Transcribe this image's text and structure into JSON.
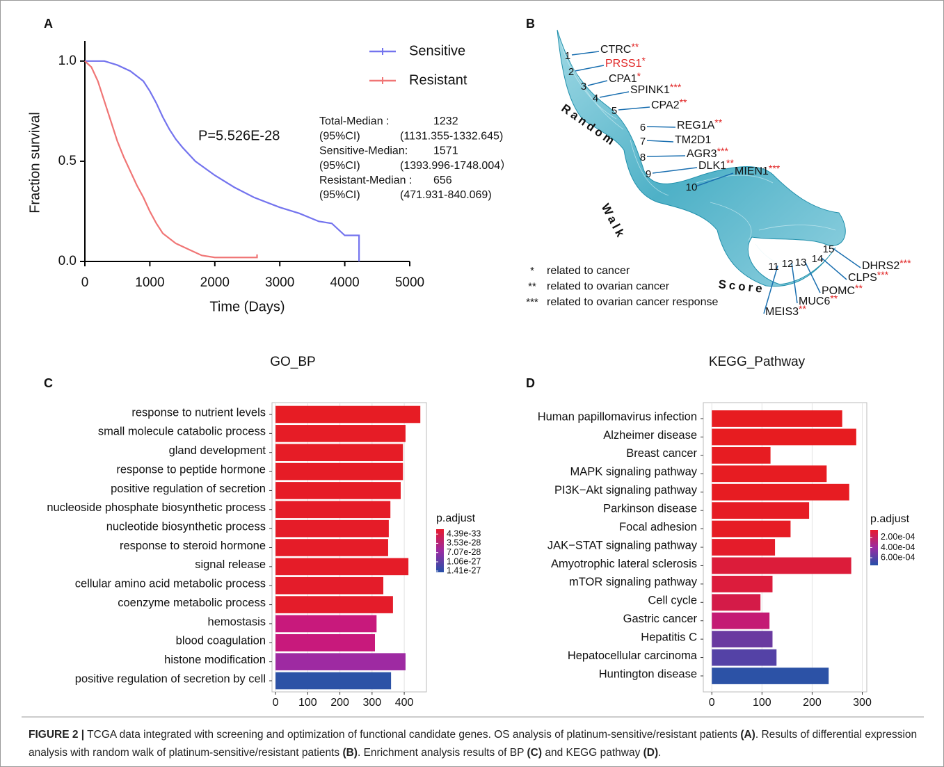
{
  "chart_data": [
    {
      "type": "survival",
      "panel": "A",
      "xlabel": "Time (Days)",
      "ylabel": "Fraction survival",
      "xlim": [
        0,
        5000
      ],
      "ylim": [
        0,
        1.1
      ],
      "xticks": [
        0,
        1000,
        2000,
        3000,
        4000,
        5000
      ],
      "yticks": [
        {
          "value": 0,
          "label": "0.0"
        },
        {
          "value": 0.5,
          "label": "0.5"
        },
        {
          "value": 1,
          "label": "1.0"
        }
      ],
      "legend": "upper right",
      "series": [
        {
          "name": "Sensitive",
          "color": "#7373ee",
          "x": [
            0,
            300,
            500,
            700,
            900,
            1000,
            1100,
            1200,
            1300,
            1400,
            1500,
            1700,
            2000,
            2300,
            2600,
            3000,
            3300,
            3600,
            3800,
            4000,
            4220,
            4220
          ],
          "values": [
            1.0,
            1.0,
            0.98,
            0.95,
            0.9,
            0.85,
            0.79,
            0.72,
            0.66,
            0.61,
            0.57,
            0.5,
            0.43,
            0.37,
            0.32,
            0.27,
            0.24,
            0.2,
            0.19,
            0.13,
            0.13,
            0.0
          ]
        },
        {
          "name": "Resistant",
          "color": "#f07575",
          "x": [
            0,
            100,
            200,
            300,
            400,
            500,
            600,
            700,
            800,
            900,
            1000,
            1100,
            1200,
            1400,
            1600,
            1800,
            2000,
            2650,
            2650
          ],
          "values": [
            1.0,
            0.97,
            0.9,
            0.8,
            0.7,
            0.6,
            0.52,
            0.45,
            0.38,
            0.32,
            0.25,
            0.19,
            0.14,
            0.09,
            0.06,
            0.03,
            0.02,
            0.02,
            0.035
          ]
        }
      ],
      "annotation": "P=5.526E-28",
      "stats": [
        [
          "Total-Median :",
          "1232"
        ],
        [
          "(95%CI)",
          "(1131.355-1332.645)"
        ],
        [
          "Sensitive-Median:",
          "1571"
        ],
        [
          "(95%CI)",
          "(1393.996-1748.004）"
        ],
        [
          "Resistant-Median :",
          "656"
        ],
        [
          "(95%CI)",
          "(471.931-840.069)"
        ]
      ]
    },
    {
      "type": "ribbon",
      "panel": "B",
      "axis_words": [
        "Random",
        "Walk",
        "Score"
      ],
      "genes": [
        {
          "rank": 1,
          "name": "CTRC",
          "stars": "**"
        },
        {
          "rank": 2,
          "name": "PRSS1",
          "stars": "*",
          "color": "#e02020"
        },
        {
          "rank": 3,
          "name": "CPA1",
          "stars": "*"
        },
        {
          "rank": 4,
          "name": "SPINK1",
          "stars": "***"
        },
        {
          "rank": 5,
          "name": "CPA2",
          "stars": "**"
        },
        {
          "rank": 6,
          "name": "REG1A",
          "stars": "**"
        },
        {
          "rank": 7,
          "name": "TM2D1"
        },
        {
          "rank": 8,
          "name": "AGR3",
          "stars": "***"
        },
        {
          "rank": 9,
          "name": "DLK1",
          "stars": "**"
        },
        {
          "rank": 10,
          "name": "MIEN1",
          "stars": "***"
        },
        {
          "rank": 11,
          "name": "MEIS3",
          "stars": "**"
        },
        {
          "rank": 12,
          "name": "MUC6",
          "stars": "**"
        },
        {
          "rank": 13,
          "name": "POMC",
          "stars": "**"
        },
        {
          "rank": 14,
          "name": "CLPS",
          "stars": "***"
        },
        {
          "rank": 15,
          "name": "DHRS2",
          "stars": "***"
        }
      ],
      "star_legend": [
        {
          "stars": "*",
          "text": "related to cancer"
        },
        {
          "stars": "**",
          "text": "related to ovarian cancer"
        },
        {
          "stars": "***",
          "text": "related to ovarian cancer response"
        }
      ]
    },
    {
      "type": "barh",
      "panel": "C",
      "title": "GO_BP",
      "categories": [
        "response to nutrient levels",
        "small molecule catabolic process",
        "gland development",
        "response to peptide hormone",
        "positive regulation of secretion",
        "nucleoside phosphate biosynthetic process",
        "nucleotide biosynthetic process",
        "response to steroid hormone",
        "signal release",
        "cellular amino acid metabolic process",
        "coenzyme metabolic process",
        "hemostasis",
        "blood coagulation",
        "histone modification",
        "positive regulation of secretion by cell"
      ],
      "values": [
        450,
        404,
        396,
        396,
        389,
        357,
        352,
        350,
        413,
        335,
        365,
        314,
        309,
        404,
        359
      ],
      "colors": [
        "#e71c24",
        "#e61c26",
        "#e61c26",
        "#e61c26",
        "#e61c26",
        "#e51c28",
        "#e51c28",
        "#e51c28",
        "#e51c28",
        "#e41c2a",
        "#e41c2a",
        "#c8197c",
        "#c8197c",
        "#9e2aa2",
        "#2c52a6"
      ],
      "xlim": [
        -11,
        469
      ],
      "xticks": [
        0,
        100,
        200,
        300,
        400
      ],
      "grid": true,
      "colorbar": {
        "title": "p.adjust",
        "colors": [
          "#e8192c",
          "#9a2aa2",
          "#2550a8"
        ],
        "clim": [
          -1.9e-28,
          1.46e-27
        ],
        "ticks": [
          4.39e-33,
          3.53e-28,
          7.07e-28,
          1.06e-27,
          1.41e-27
        ]
      }
    },
    {
      "type": "barh",
      "panel": "D",
      "title": "KEGG_Pathway",
      "categories": [
        "Human papillomavirus infection",
        "Alzheimer disease",
        "Breast cancer",
        "MAPK signaling pathway",
        "PI3K−Akt signaling pathway",
        "Parkinson disease",
        "Focal adhesion",
        "JAK−STAT signaling pathway",
        "Amyotrophic lateral sclerosis",
        "mTOR signaling pathway",
        "Cell cycle",
        "Gastric cancer",
        "Hepatitis C",
        "Hepatocellular carcinoma",
        "Huntington disease"
      ],
      "values": [
        260,
        288,
        117,
        229,
        274,
        194,
        157,
        126,
        278,
        121,
        97,
        115,
        121,
        129,
        233
      ],
      "colors": [
        "#e71c20",
        "#e71c20",
        "#e71c22",
        "#e71c22",
        "#e71c22",
        "#e61c24",
        "#e61c24",
        "#e41c2a",
        "#dc1c3a",
        "#dc1c3c",
        "#d41b48",
        "#c41a74",
        "#6a3aa0",
        "#5442a6",
        "#2c52a6"
      ],
      "xlim": [
        -17,
        309
      ],
      "xticks": [
        0,
        100,
        200,
        300
      ],
      "grid": true,
      "colorbar": {
        "title": "p.adjust",
        "colors": [
          "#e8192c",
          "#9a2aa2",
          "#2550a8"
        ],
        "clim": [
          5e-05,
          0.00075
        ],
        "ticks": [
          {
            "value": 0.0002,
            "label": "2.00e-04"
          },
          {
            "value": 0.0004,
            "label": "4.00e-04"
          },
          {
            "value": 0.0006,
            "label": "6.00e-04"
          }
        ]
      }
    }
  ],
  "caption": [
    {
      "text": "FIGURE 2 |",
      "bold": true
    },
    {
      "text": " TCGA data integrated with screening and optimization of functional candidate genes. OS analysis of platinum-sensitive/resistant patients "
    },
    {
      "text": "(A)",
      "bold": true
    },
    {
      "text": ". Results of differential expression analysis with random walk of platinum-sensitive/resistant patients "
    },
    {
      "text": "(B)",
      "bold": true
    },
    {
      "text": ". Enrichment analysis results of BP "
    },
    {
      "text": "(C)",
      "bold": true
    },
    {
      "text": " and KEGG pathway "
    },
    {
      "text": "(D)",
      "bold": true
    },
    {
      "text": "."
    }
  ]
}
